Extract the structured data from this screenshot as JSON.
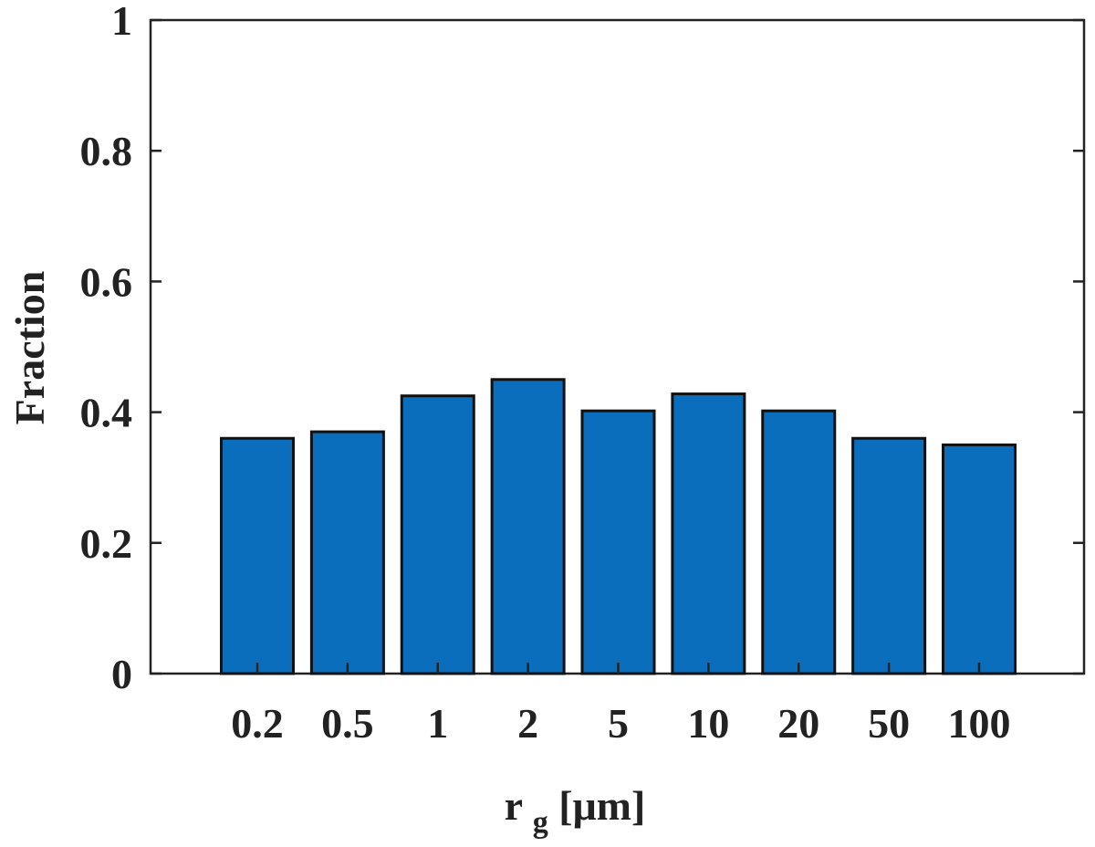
{
  "chart_data": {
    "type": "bar",
    "categories": [
      "0.2",
      "0.5",
      "1",
      "2",
      "5",
      "10",
      "20",
      "50",
      "100"
    ],
    "values": [
      0.36,
      0.37,
      0.425,
      0.45,
      0.402,
      0.428,
      0.402,
      0.36,
      0.35
    ],
    "ylim": [
      0,
      1
    ],
    "yticks": [
      "0",
      "0.2",
      "0.4",
      "0.6",
      "0.8",
      "1"
    ],
    "ylabel": "Fraction",
    "xlabel_main": "r",
    "xlabel_sub": "g",
    "xlabel_rest": " [μm]",
    "bar_color": "#0a6ebd",
    "bar_edge_color": "#111111",
    "grid": false,
    "legend": "none"
  }
}
